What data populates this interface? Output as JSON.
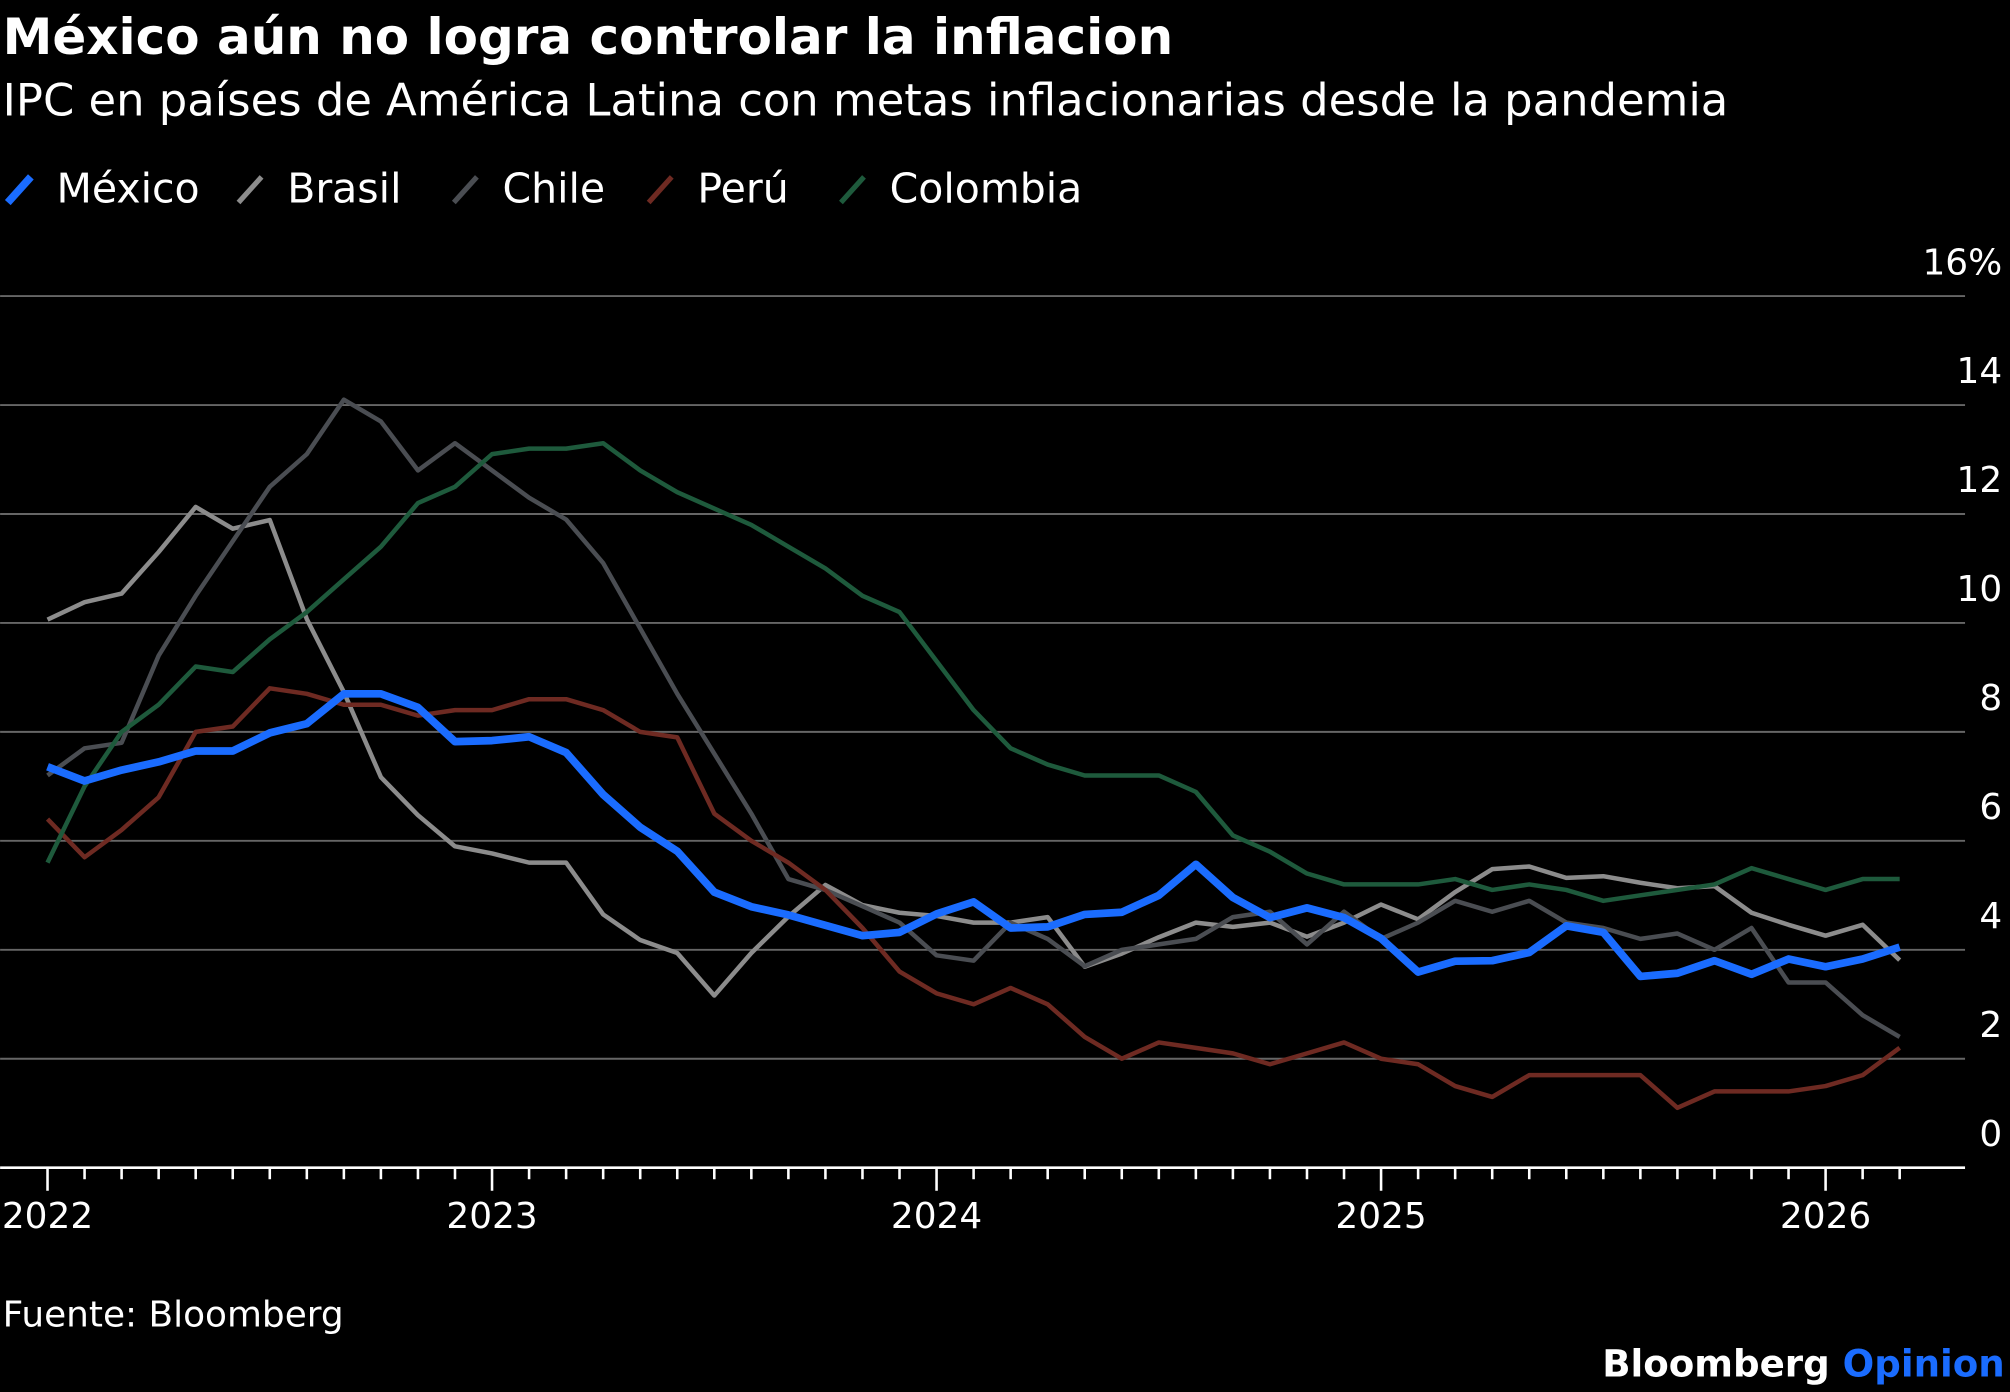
{
  "chart_data": {
    "type": "line",
    "title": "México aún no logra controlar la inflacion",
    "subtitle": "IPC en países de América Latina con metas inflacionarias desde la pandemia",
    "source": "Fuente: Bloomberg",
    "brand": "Bloomberg",
    "brand_suffix": "Opinion",
    "categories": [
      "2022",
      null,
      null,
      null,
      null,
      null,
      null,
      null,
      null,
      null,
      null,
      null,
      "2023",
      null,
      null,
      null,
      null,
      null,
      null,
      null,
      null,
      null,
      null,
      null,
      "2024",
      null,
      null,
      null,
      null,
      null,
      null,
      null,
      null,
      null,
      null,
      null,
      "2025",
      null,
      null,
      null,
      null,
      null,
      null,
      null,
      null,
      null,
      null,
      null,
      "2026",
      null,
      null
    ],
    "ylim": [
      0,
      16
    ],
    "yticks": [
      0,
      2,
      4,
      6,
      8,
      10,
      12,
      14,
      {
        "value": 16,
        "label": "16%"
      }
    ],
    "grid": true,
    "series": [
      {
        "name": "Brasil",
        "color": "#8c8c8c",
        "values": [
          10.06,
          10.38,
          10.54,
          11.3,
          12.13,
          11.73,
          11.89,
          10.07,
          8.73,
          7.17,
          6.47,
          5.9,
          5.77,
          5.6,
          5.6,
          4.65,
          4.18,
          3.94,
          3.16,
          3.94,
          4.61,
          5.19,
          4.82,
          4.68,
          4.62,
          4.5,
          4.5,
          4.6,
          3.69,
          3.93,
          4.23,
          4.5,
          4.42,
          4.5,
          4.24,
          4.5,
          4.83,
          4.56,
          5.06,
          5.48,
          5.53,
          5.32,
          5.35,
          5.23,
          5.13,
          5.17,
          4.68,
          4.46,
          4.26,
          4.46,
          3.81
        ]
      },
      {
        "name": "Chile",
        "color": "#4a4d52",
        "values": [
          7.2,
          7.7,
          7.8,
          9.4,
          10.5,
          11.5,
          12.5,
          13.1,
          14.1,
          13.7,
          12.8,
          13.3,
          12.8,
          12.3,
          11.9,
          11.1,
          9.9,
          8.7,
          7.6,
          6.5,
          5.3,
          5.1,
          4.8,
          4.5,
          3.9,
          3.8,
          4.5,
          4.2,
          3.7,
          4.0,
          4.1,
          4.2,
          4.6,
          4.7,
          4.1,
          4.7,
          4.2,
          4.5,
          4.9,
          4.7,
          4.9,
          4.5,
          4.4,
          4.2,
          4.3,
          4.0,
          4.4,
          3.4,
          3.4,
          2.8,
          2.4
        ]
      },
      {
        "name": "Perú",
        "color": "#6e2a22",
        "values": [
          6.4,
          5.7,
          6.2,
          6.8,
          8.0,
          8.1,
          8.8,
          8.7,
          8.5,
          8.5,
          8.3,
          8.4,
          8.4,
          8.6,
          8.6,
          8.4,
          8.0,
          7.9,
          6.5,
          6.0,
          5.6,
          5.1,
          4.4,
          3.6,
          3.2,
          3.0,
          3.3,
          3.0,
          2.4,
          2.0,
          2.3,
          2.2,
          2.1,
          1.9,
          2.1,
          2.3,
          2.0,
          1.9,
          1.5,
          1.3,
          1.7,
          1.7,
          1.7,
          1.7,
          1.1,
          1.4,
          1.4,
          1.4,
          1.5,
          1.7,
          2.2
        ]
      },
      {
        "name": "Colombia",
        "color": "#1e5a3c",
        "values": [
          5.6,
          7.0,
          8.0,
          8.5,
          9.2,
          9.1,
          9.7,
          10.2,
          10.8,
          11.4,
          12.2,
          12.5,
          13.1,
          13.2,
          13.2,
          13.3,
          12.8,
          12.4,
          12.1,
          11.8,
          11.4,
          11.0,
          10.5,
          10.2,
          9.3,
          8.4,
          7.7,
          7.4,
          7.2,
          7.2,
          7.2,
          6.9,
          6.1,
          5.8,
          5.4,
          5.2,
          5.2,
          5.2,
          5.3,
          5.1,
          5.2,
          5.1,
          4.9,
          5.0,
          5.1,
          5.2,
          5.5,
          5.3,
          5.1,
          5.3,
          5.3
        ]
      },
      {
        "name": "México",
        "color": "#1a6cff",
        "values": [
          7.36,
          7.1,
          7.3,
          7.45,
          7.65,
          7.65,
          7.98,
          8.15,
          8.7,
          8.7,
          8.45,
          7.82,
          7.84,
          7.91,
          7.62,
          6.85,
          6.25,
          5.81,
          5.06,
          4.79,
          4.64,
          4.45,
          4.26,
          4.32,
          4.66,
          4.88,
          4.4,
          4.42,
          4.65,
          4.69,
          5.0,
          5.57,
          4.96,
          4.59,
          4.77,
          4.59,
          4.21,
          3.59,
          3.79,
          3.8,
          3.95,
          4.44,
          4.32,
          3.51,
          3.57,
          3.8,
          3.55,
          3.83,
          3.69,
          3.83,
          4.05
        ]
      }
    ],
    "legend_order": [
      4,
      0,
      1,
      2,
      3
    ]
  }
}
